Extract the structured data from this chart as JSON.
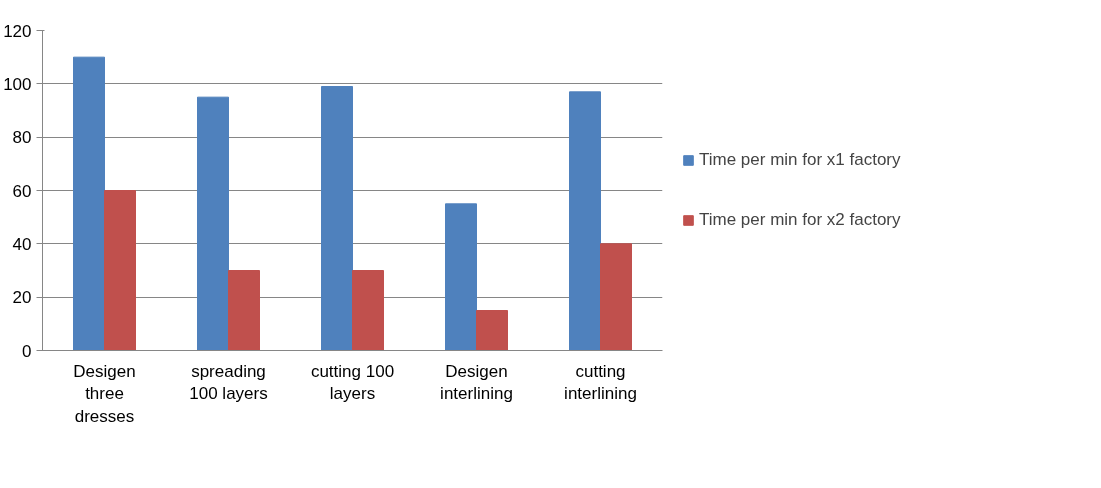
{
  "chart_data": {
    "type": "bar",
    "categories": [
      "Desigen three dresses",
      "spreading 100 layers",
      "cutting 100 layers",
      "Desigen interlining",
      "cutting interlining"
    ],
    "series": [
      {
        "name": "Time per min for x1 factory",
        "color": "#4f81bd",
        "values": [
          110,
          95,
          99,
          55,
          97
        ]
      },
      {
        "name": "Time per min for x2 factory",
        "color": "#c0504d",
        "values": [
          60,
          30,
          30,
          15,
          40
        ]
      }
    ],
    "ylim": [
      0,
      120
    ],
    "yticks": [
      0,
      20,
      40,
      60,
      80,
      100,
      120
    ],
    "grid": "y",
    "legend": "right"
  }
}
